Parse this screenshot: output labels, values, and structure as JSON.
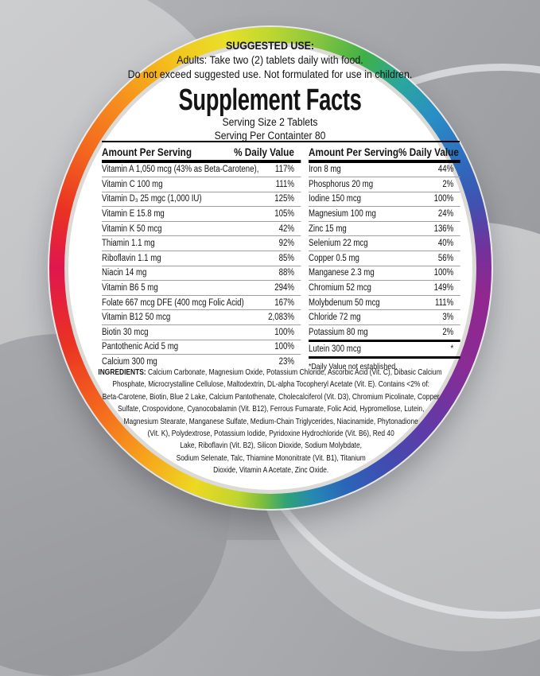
{
  "suggested_use": {
    "heading": "SUGGESTED USE:",
    "line1": "Adults: Take two (2) tablets daily with food.",
    "line2": "Do not exceed suggested use. Not formulated for use in children."
  },
  "title": "Supplement Facts",
  "serving": {
    "size": "Serving Size 2 Tablets",
    "per_container": "Serving Per Containter 80"
  },
  "table_headers": {
    "amount": "Amount Per Serving",
    "daily_value": "% Daily Value"
  },
  "left_table": {
    "rows": [
      {
        "n": "Vitamin A 1,050 mcg (43% as Beta-Carotene),",
        "v": "117%"
      },
      {
        "n": "Vitamin C 100 mg",
        "v": "111%"
      },
      {
        "n": "Vitamin D₃ 25 mgc (1,000 IU)",
        "v": "125%"
      },
      {
        "n": "Vitamin E 15.8 mg",
        "v": "105%"
      },
      {
        "n": "Vitamin K 50 mcg",
        "v": "42%"
      },
      {
        "n": "Thiamin 1.1 mg",
        "v": "92%"
      },
      {
        "n": "Riboflavin 1.1 mg",
        "v": "85%"
      },
      {
        "n": "Niacin 14 mg",
        "v": "88%"
      },
      {
        "n": "Vitamin B6 5 mg",
        "v": "294%"
      },
      {
        "n": "Folate 667 mcg DFE (400 mcg Folic Acid)",
        "v": "167%"
      },
      {
        "n": "Vitamin B12 50 mcg",
        "v": "2,083%"
      },
      {
        "n": "Biotin 30 mcg",
        "v": "100%"
      },
      {
        "n": "Pantothenic Acid 5 mg",
        "v": "100%"
      },
      {
        "n": "Calcium 300 mg",
        "v": "23%"
      }
    ]
  },
  "right_table": {
    "rows": [
      {
        "n": "Iron 8 mg",
        "v": "44%"
      },
      {
        "n": "Phosphorus 20 mg",
        "v": "2%"
      },
      {
        "n": "Iodine 150 mcg",
        "v": "100%"
      },
      {
        "n": "Magnesium 100 mg",
        "v": "24%"
      },
      {
        "n": "Zinc 15 mg",
        "v": "136%"
      },
      {
        "n": "Selenium 22 mcg",
        "v": "40%"
      },
      {
        "n": "Copper 0.5 mg",
        "v": "56%"
      },
      {
        "n": "Manganese 2.3 mg",
        "v": "100%"
      },
      {
        "n": "Chromium 52 mcg",
        "v": "149%"
      },
      {
        "n": "Molybdenum 50 mcg",
        "v": "111%"
      },
      {
        "n": "Chloride 72 mg",
        "v": "3%"
      },
      {
        "n": "Potassium 80 mg",
        "v": "2%"
      }
    ],
    "lutein": {
      "n": "Lutein 300 mcg",
      "v": "*"
    },
    "footnote": "*Daily Value not established."
  },
  "ingredients": {
    "lines": [
      {
        "b": "INGREDIENTS:",
        "t": "Calcium Carbonate, Magnesium Oxide, Potassium Chloride, Ascorbic Acid (Vit. C), Dibasic Calcium"
      },
      {
        "b": "",
        "t": "Phosphate, Microcrystalline Cellulose, Maltodextrin, DL-alpha Tocopheryl Acetate (Vit. E). Contains <2% of:"
      },
      {
        "b": "",
        "t": "Beta-Carotene, Biotin, Blue 2 Lake, Calcium Pantothenate, Cholecalciferol (Vit. D3), Chromium Picolinate, Copper"
      },
      {
        "b": "",
        "t": "Sulfate, Crospovidone, Cyanocobalamin (Vit. B12), Ferrous Fumarate, Folic Acid, Hypromellose, Lutein,"
      },
      {
        "b": "",
        "t": "Magnesium Stearate, Manganese Sulfate, Medium-Chain Triglycerides, Niacinamide, Phytonadione"
      },
      {
        "b": "",
        "t": "(Vit. K), Polydextrose, Potassium Iodide, Pyridoxine Hydrochloride (Vit. B6), Red 40"
      },
      {
        "b": "",
        "t": "Lake, Riboflavin (Vit. B2), Silicon Dioxide, Sodium Molybdate,"
      },
      {
        "b": "",
        "t": "Sodium Selenate, Talc, Thiamine Mononitrate (Vit. B1), Titanium"
      },
      {
        "b": "",
        "t": "Dioxide, Vitamin A Acetate, Zinc Oxide."
      }
    ]
  },
  "ring_colors": [
    {
      "angle": 0,
      "color": "#e0164f"
    },
    {
      "angle": 16,
      "color": "#ea3322"
    },
    {
      "angle": 32,
      "color": "#f3661f"
    },
    {
      "angle": 50,
      "color": "#f7941d"
    },
    {
      "angle": 66,
      "color": "#f3c51c"
    },
    {
      "angle": 79,
      "color": "#e8e02a"
    },
    {
      "angle": 90,
      "color": "#bed730"
    },
    {
      "angle": 102,
      "color": "#86c440"
    },
    {
      "angle": 114,
      "color": "#3eb049"
    },
    {
      "angle": 125,
      "color": "#2aa79c"
    },
    {
      "angle": 137,
      "color": "#2a8ec6"
    },
    {
      "angle": 151,
      "color": "#2d6cbe"
    },
    {
      "angle": 163,
      "color": "#4151b0"
    },
    {
      "angle": 175,
      "color": "#73319b"
    },
    {
      "angle": 187,
      "color": "#91278f"
    },
    {
      "angle": 206,
      "color": "#8b2b94"
    },
    {
      "angle": 223,
      "color": "#6638a4"
    },
    {
      "angle": 239,
      "color": "#414bb0"
    },
    {
      "angle": 251,
      "color": "#2a65b8"
    },
    {
      "angle": 259,
      "color": "#2587b4"
    },
    {
      "angle": 266,
      "color": "#2fa277"
    },
    {
      "angle": 272,
      "color": "#7dbe3d"
    },
    {
      "angle": 278,
      "color": "#c0d52f"
    },
    {
      "angle": 289,
      "color": "#ecd922"
    },
    {
      "angle": 303,
      "color": "#f7a51c"
    },
    {
      "angle": 321,
      "color": "#f3661f"
    },
    {
      "angle": 339,
      "color": "#ea3322"
    },
    {
      "angle": 360,
      "color": "#e0164f"
    }
  ]
}
